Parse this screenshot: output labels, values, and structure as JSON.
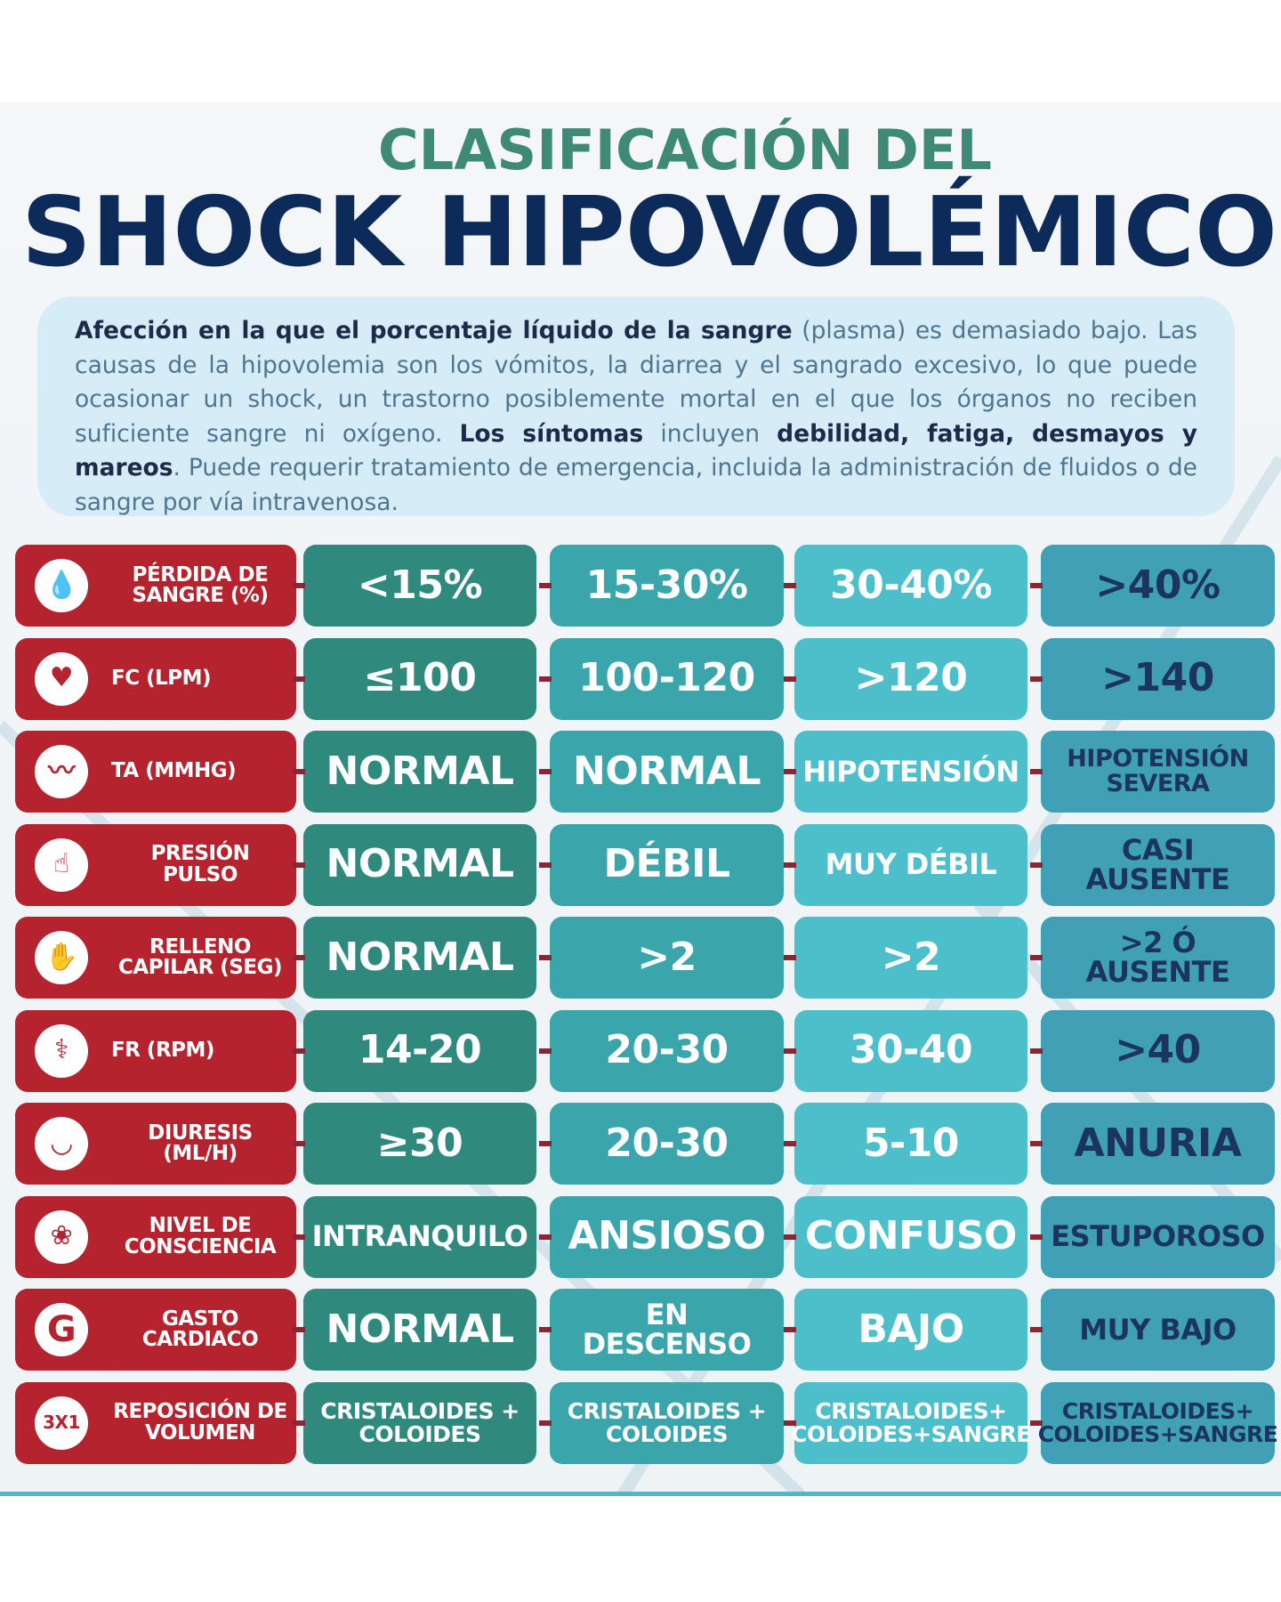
{
  "header": {
    "title_line1": "CLASIFICACIÓN DEL",
    "title_line2": "SHOCK HIPOVOLÉMICO"
  },
  "description": [
    {
      "text": "Afección en la que el porcentaje líquido de la sangre",
      "bold": true
    },
    {
      "text": " (plasma) es demasiado bajo. Las causas de la hipovolemia son los vómitos, la diarrea y el sangrado excesivo, lo que puede ocasionar un shock, un trastorno posiblemente mortal en el que los órganos no reciben suficiente sangre ni oxígeno. ",
      "bold": false
    },
    {
      "text": "Los síntomas",
      "bold": true
    },
    {
      "text": " incluyen ",
      "bold": false
    },
    {
      "text": "debilidad, fatiga, desmayos y mareos",
      "bold": true
    },
    {
      "text": ". Puede requerir tratamiento de emergencia, incluida la administración de fluidos o de sangre por vía intravenosa.",
      "bold": false
    }
  ],
  "table": {
    "rows": [
      {
        "label": "PÉRDIDA DE SANGRE (%)",
        "values": [
          "<15%",
          "15-30%",
          "30-40%",
          ">40%"
        ]
      },
      {
        "label": "FC (LPM)",
        "values": [
          "≤100",
          "100-120",
          ">120",
          ">140"
        ]
      },
      {
        "label": "TA (MMHG)",
        "values": [
          "NORMAL",
          "NORMAL",
          "HIPOTENSIÓN",
          "HIPOTENSIÓN SEVERA"
        ]
      },
      {
        "label": "PRESIÓN PULSO",
        "values": [
          "NORMAL",
          "DÉBIL",
          "MUY DÉBIL",
          "CASI AUSENTE"
        ]
      },
      {
        "label": "RELLENO CAPILAR (SEG)",
        "values": [
          "NORMAL",
          ">2",
          ">2",
          ">2 Ó AUSENTE"
        ]
      },
      {
        "label": "FR (RPM)",
        "values": [
          "14-20",
          "20-30",
          "30-40",
          ">40"
        ]
      },
      {
        "label": "DIURESIS (ML/H)",
        "values": [
          "≥30",
          "20-30",
          "5-10",
          "ANURIA"
        ]
      },
      {
        "label": "NIVEL DE CONSCIENCIA",
        "values": [
          "INTRANQUILO",
          "ANSIOSO",
          "CONFUSO",
          "ESTUPOROSO"
        ]
      },
      {
        "label": "GASTO CARDIACO",
        "icon_text": "G",
        "values": [
          "NORMAL",
          "EN DESCENSO",
          "BAJO",
          "MUY BAJO"
        ]
      },
      {
        "label": "REPOSICIÓN DE VOLUMEN",
        "icon_text": "3X1",
        "values": [
          "CRISTALOIDES + COLOIDES",
          "CRISTALOIDES + COLOIDES",
          "CRISTALOIDES+ COLOIDES+SANGRE",
          "CRISTALOIDES+ COLOIDES+SANGRE"
        ]
      }
    ]
  }
}
